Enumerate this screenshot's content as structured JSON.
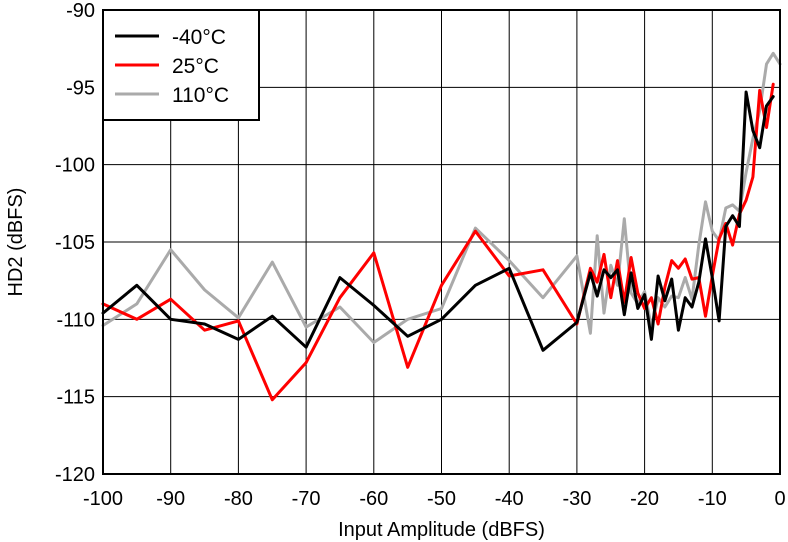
{
  "chart_data": {
    "type": "line",
    "title": "",
    "xlabel": "Input Amplitude (dBFS)",
    "ylabel": "HD2 (dBFS)",
    "xlim": [
      -100,
      0
    ],
    "ylim": [
      -120,
      -90
    ],
    "xticks": [
      -100,
      -90,
      -80,
      -70,
      -60,
      -50,
      -40,
      -30,
      -20,
      -10,
      0
    ],
    "yticks": [
      -90,
      -95,
      -100,
      -105,
      -110,
      -115,
      -120
    ],
    "xtick_labels": [
      "-100",
      "-90",
      "-80",
      "-70",
      "-60",
      "-50",
      "-40",
      "-30",
      "-20",
      "-10",
      "0"
    ],
    "ytick_labels": [
      "-90",
      "-95",
      "-100",
      "-105",
      "-110",
      "-115",
      "-120"
    ],
    "grid": true,
    "legend_position": "top-left",
    "series": [
      {
        "name": "-40°C",
        "color": "#000000",
        "points": [
          [
            -100,
            -109.6
          ],
          [
            -95,
            -107.8
          ],
          [
            -90,
            -110.0
          ],
          [
            -85,
            -110.3
          ],
          [
            -80,
            -111.3
          ],
          [
            -75,
            -109.8
          ],
          [
            -70,
            -111.8
          ],
          [
            -65,
            -107.3
          ],
          [
            -60,
            -109.1
          ],
          [
            -55,
            -111.1
          ],
          [
            -50,
            -110.0
          ],
          [
            -45,
            -107.8
          ],
          [
            -40,
            -106.7
          ],
          [
            -35,
            -112.0
          ],
          [
            -30,
            -110.2
          ],
          [
            -28,
            -107.0
          ],
          [
            -27,
            -108.5
          ],
          [
            -26,
            -106.8
          ],
          [
            -25,
            -107.3
          ],
          [
            -24,
            -106.8
          ],
          [
            -23,
            -109.7
          ],
          [
            -22,
            -107.0
          ],
          [
            -21,
            -109.3
          ],
          [
            -20,
            -108.4
          ],
          [
            -19,
            -111.3
          ],
          [
            -18,
            -107.2
          ],
          [
            -17,
            -108.8
          ],
          [
            -16,
            -107.4
          ],
          [
            -15,
            -110.7
          ],
          [
            -14,
            -108.6
          ],
          [
            -13,
            -109.2
          ],
          [
            -12,
            -107.6
          ],
          [
            -11,
            -104.8
          ],
          [
            -10,
            -107.3
          ],
          [
            -9,
            -110.1
          ],
          [
            -8,
            -104.0
          ],
          [
            -7,
            -103.3
          ],
          [
            -6,
            -104.0
          ],
          [
            -5,
            -95.3
          ],
          [
            -4,
            -97.8
          ],
          [
            -3,
            -98.9
          ],
          [
            -2,
            -96.2
          ],
          [
            -1,
            -95.6
          ]
        ]
      },
      {
        "name": "25°C",
        "color": "#ff0000",
        "points": [
          [
            -100,
            -109.0
          ],
          [
            -95,
            -110.0
          ],
          [
            -90,
            -108.7
          ],
          [
            -85,
            -110.7
          ],
          [
            -80,
            -110.1
          ],
          [
            -75,
            -115.2
          ],
          [
            -70,
            -112.8
          ],
          [
            -65,
            -108.6
          ],
          [
            -60,
            -105.7
          ],
          [
            -55,
            -113.1
          ],
          [
            -50,
            -107.8
          ],
          [
            -45,
            -104.3
          ],
          [
            -40,
            -107.2
          ],
          [
            -35,
            -106.8
          ],
          [
            -30,
            -110.3
          ],
          [
            -28,
            -106.7
          ],
          [
            -27,
            -107.6
          ],
          [
            -26,
            -105.8
          ],
          [
            -25,
            -108.6
          ],
          [
            -24,
            -106.2
          ],
          [
            -23,
            -108.9
          ],
          [
            -22,
            -106.0
          ],
          [
            -21,
            -108.3
          ],
          [
            -20,
            -109.3
          ],
          [
            -19,
            -108.6
          ],
          [
            -18,
            -110.3
          ],
          [
            -17,
            -107.9
          ],
          [
            -16,
            -106.2
          ],
          [
            -15,
            -106.7
          ],
          [
            -14,
            -106.1
          ],
          [
            -13,
            -107.4
          ],
          [
            -12,
            -107.3
          ],
          [
            -11,
            -109.8
          ],
          [
            -10,
            -107.2
          ],
          [
            -9,
            -104.8
          ],
          [
            -8,
            -103.8
          ],
          [
            -7,
            -105.2
          ],
          [
            -6,
            -103.2
          ],
          [
            -5,
            -102.3
          ],
          [
            -4,
            -100.8
          ],
          [
            -3,
            -95.2
          ],
          [
            -2,
            -97.6
          ],
          [
            -1,
            -94.8
          ]
        ]
      },
      {
        "name": "110°C",
        "color": "#aaaaaa",
        "points": [
          [
            -100,
            -110.4
          ],
          [
            -95,
            -109.0
          ],
          [
            -90,
            -105.5
          ],
          [
            -85,
            -108.1
          ],
          [
            -80,
            -109.9
          ],
          [
            -75,
            -106.3
          ],
          [
            -70,
            -110.5
          ],
          [
            -65,
            -109.2
          ],
          [
            -60,
            -111.5
          ],
          [
            -55,
            -110.0
          ],
          [
            -50,
            -109.3
          ],
          [
            -45,
            -104.1
          ],
          [
            -40,
            -106.2
          ],
          [
            -35,
            -108.6
          ],
          [
            -30,
            -105.9
          ],
          [
            -28,
            -110.9
          ],
          [
            -27,
            -104.6
          ],
          [
            -26,
            -109.6
          ],
          [
            -25,
            -106.5
          ],
          [
            -24,
            -107.8
          ],
          [
            -23,
            -103.5
          ],
          [
            -22,
            -108.3
          ],
          [
            -21,
            -109.0
          ],
          [
            -20,
            -108.2
          ],
          [
            -19,
            -110.5
          ],
          [
            -18,
            -108.6
          ],
          [
            -17,
            -109.2
          ],
          [
            -16,
            -108.5
          ],
          [
            -15,
            -108.6
          ],
          [
            -14,
            -107.3
          ],
          [
            -13,
            -108.7
          ],
          [
            -12,
            -105.2
          ],
          [
            -11,
            -102.4
          ],
          [
            -10,
            -104.3
          ],
          [
            -9,
            -104.9
          ],
          [
            -8,
            -102.8
          ],
          [
            -7,
            -102.6
          ],
          [
            -6,
            -103.0
          ],
          [
            -5,
            -100.5
          ],
          [
            -4,
            -98.3
          ],
          [
            -3,
            -96.5
          ],
          [
            -2,
            -93.5
          ],
          [
            -1,
            -92.8
          ],
          [
            0,
            -93.5
          ]
        ]
      }
    ]
  }
}
